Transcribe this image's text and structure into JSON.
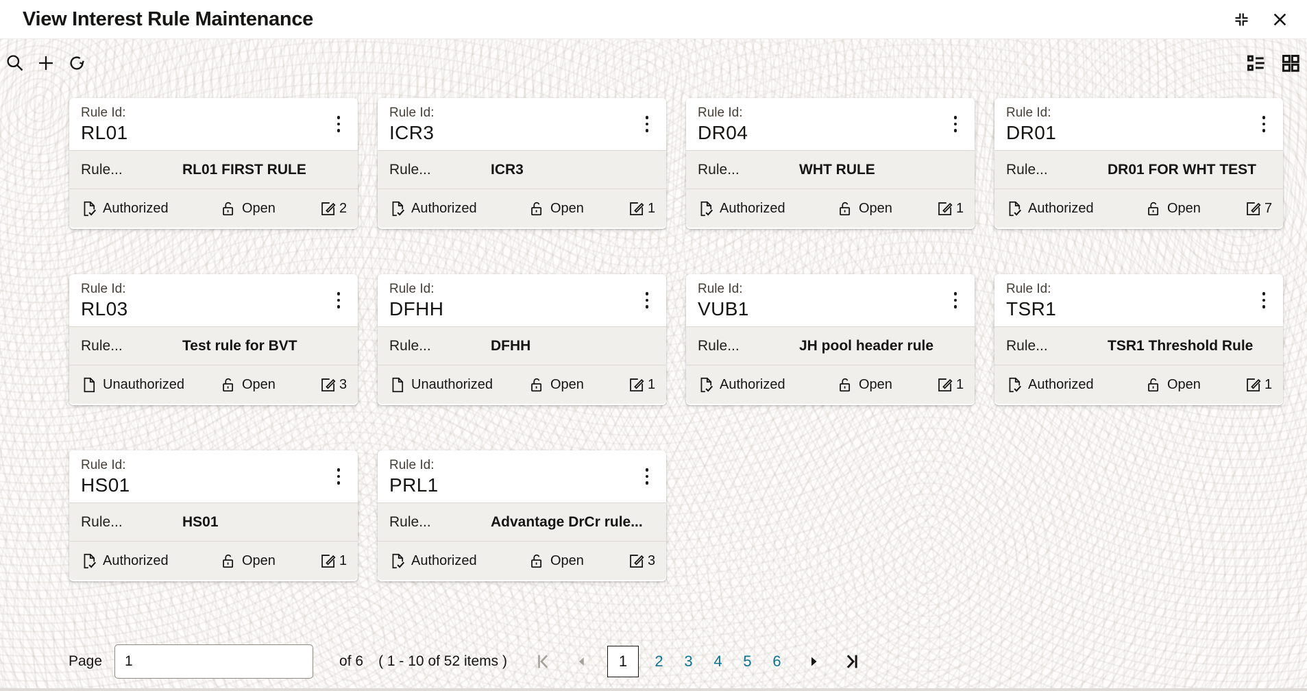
{
  "window": {
    "title": "View Interest Rule Maintenance"
  },
  "labels": {
    "rule_id": "Rule Id:",
    "rule": "Rule..."
  },
  "cards": [
    {
      "rule_id": "RL01",
      "description": "RL01 FIRST RULE",
      "auth_status": "Authorized",
      "record_status": "Open",
      "mod_count": "2"
    },
    {
      "rule_id": "ICR3",
      "description": "ICR3",
      "auth_status": "Authorized",
      "record_status": "Open",
      "mod_count": "1"
    },
    {
      "rule_id": "DR04",
      "description": "WHT RULE",
      "auth_status": "Authorized",
      "record_status": "Open",
      "mod_count": "1"
    },
    {
      "rule_id": "DR01",
      "description": "DR01 FOR WHT TEST",
      "auth_status": "Authorized",
      "record_status": "Open",
      "mod_count": "7"
    },
    {
      "rule_id": "RL03",
      "description": "Test rule for BVT",
      "auth_status": "Unauthorized",
      "record_status": "Open",
      "mod_count": "3"
    },
    {
      "rule_id": "DFHH",
      "description": "DFHH",
      "auth_status": "Unauthorized",
      "record_status": "Open",
      "mod_count": "1"
    },
    {
      "rule_id": "VUB1",
      "description": "JH pool header rule",
      "auth_status": "Authorized",
      "record_status": "Open",
      "mod_count": "1"
    },
    {
      "rule_id": "TSR1",
      "description": "TSR1 Threshold Rule",
      "auth_status": "Authorized",
      "record_status": "Open",
      "mod_count": "1"
    },
    {
      "rule_id": "HS01",
      "description": "HS01",
      "auth_status": "Authorized",
      "record_status": "Open",
      "mod_count": "1"
    },
    {
      "rule_id": "PRL1",
      "description": "Advantage DrCr rule...",
      "auth_status": "Authorized",
      "record_status": "Open",
      "mod_count": "3"
    }
  ],
  "pagination": {
    "page_label": "Page",
    "page_value": "1",
    "total_label": "of 6",
    "items_label": "( 1 - 10 of 52 items )",
    "pages": [
      "1",
      "2",
      "3",
      "4",
      "5",
      "6"
    ],
    "current_page": "1"
  },
  "icons": {
    "titlebar": [
      "collapse-icon",
      "close-icon"
    ],
    "toolbar_left": [
      "search-icon",
      "add-icon",
      "refresh-icon"
    ],
    "toolbar_right": [
      "list-view-icon",
      "grid-view-icon"
    ],
    "card": [
      "kebab-menu-icon",
      "authorized-document-icon",
      "unauthorized-document-icon",
      "open-lock-icon",
      "edit-modification-icon"
    ],
    "pager": [
      "first-page-icon",
      "previous-page-icon",
      "next-page-icon",
      "last-page-icon"
    ]
  },
  "colors": {
    "accent_link": "#0d7390",
    "title_text": "#161513",
    "card_row_bg": "#f0efec",
    "divider": "#dcd8d3",
    "disabled_control": "#a5a19a"
  }
}
